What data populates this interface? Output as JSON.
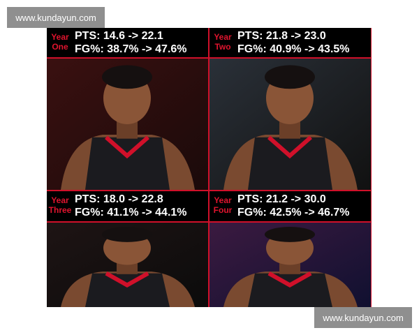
{
  "watermarks": {
    "top": "www.kundayun.com",
    "bottom": "www.kundayun.com"
  },
  "panels": [
    {
      "year_label": "Year",
      "year_number": "One",
      "pts": "PTS: 14.6 -> 22.1",
      "fg": "FG%: 38.7% -> 47.6%"
    },
    {
      "year_label": "Year",
      "year_number": "Two",
      "pts": "PTS: 21.8 -> 23.0",
      "fg": "FG%: 40.9% -> 43.5%"
    },
    {
      "year_label": "Year",
      "year_number": "Three",
      "pts": "PTS: 18.0 -> 22.8",
      "fg": "FG%: 41.1% -> 44.1%"
    },
    {
      "year_label": "Year",
      "year_number": "Four",
      "pts": "PTS: 21.2 -> 30.0",
      "fg": "FG%: 42.5% -> 46.7%"
    }
  ]
}
